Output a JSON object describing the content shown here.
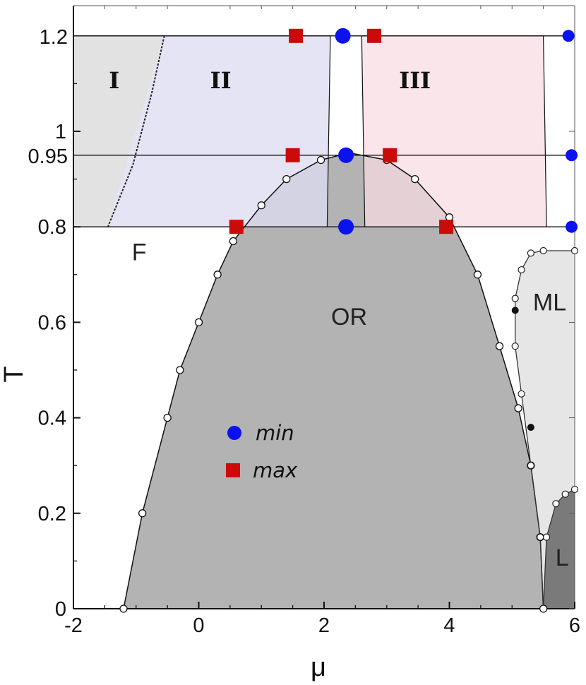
{
  "chart_data": {
    "type": "scatter",
    "xlabel": "μ",
    "ylabel": "T",
    "xlim": [
      -2,
      6
    ],
    "ylim": [
      0,
      1.2
    ],
    "x_ticks": [
      -2,
      0,
      2,
      4,
      6
    ],
    "x_tick_labels": [
      "-2",
      "0",
      "2",
      "4",
      "6"
    ],
    "y_ticks": [
      0,
      0.2,
      0.4,
      0.6,
      0.8,
      1.0
    ],
    "y_tick_labels": [
      "0",
      "0.2",
      "0.4",
      "0.6",
      "0.8",
      "1"
    ],
    "extra_y_labels": [
      {
        "y": 0.95,
        "label": "0.95"
      },
      {
        "y": 1.2,
        "label": "1.2"
      }
    ],
    "grid": false,
    "legend_position": "center-left",
    "colors": {
      "min": "#0a12ee",
      "max": "#cc0a0a",
      "region_I": "#e2e2e2",
      "region_II": "#dcdcf2",
      "region_III": "#f6dbe2",
      "OR": "#b3b3b3",
      "ML": "#e6e6e6",
      "L": "#7a7a7a"
    },
    "regions": [
      {
        "label": "I"
      },
      {
        "label": "II"
      },
      {
        "label": "III"
      },
      {
        "label": "F"
      },
      {
        "label": "OR"
      },
      {
        "label": "ML"
      },
      {
        "label": "L"
      }
    ],
    "series": [
      {
        "name": "min",
        "marker": "circle",
        "color": "#0a12ee",
        "points": [
          {
            "x": 2.3,
            "y": 1.2
          },
          {
            "x": 5.9,
            "y": 1.2
          },
          {
            "x": 2.35,
            "y": 0.95
          },
          {
            "x": 5.95,
            "y": 0.95
          },
          {
            "x": 2.35,
            "y": 0.8
          },
          {
            "x": 5.95,
            "y": 0.8
          }
        ]
      },
      {
        "name": "max",
        "marker": "square",
        "color": "#cc0a0a",
        "points": [
          {
            "x": 1.55,
            "y": 1.2
          },
          {
            "x": 2.8,
            "y": 1.2
          },
          {
            "x": 1.5,
            "y": 0.95
          },
          {
            "x": 3.05,
            "y": 0.95
          },
          {
            "x": 0.6,
            "y": 0.8
          },
          {
            "x": 3.95,
            "y": 0.8
          }
        ]
      }
    ],
    "boundaries": {
      "OR": [
        [
          -1.2,
          0
        ],
        [
          -0.9,
          0.2
        ],
        [
          -0.5,
          0.4
        ],
        [
          -0.3,
          0.5
        ],
        [
          0,
          0.6
        ],
        [
          0.3,
          0.7
        ],
        [
          0.55,
          0.77
        ],
        [
          1.0,
          0.845
        ],
        [
          1.4,
          0.9
        ],
        [
          1.95,
          0.94
        ],
        [
          2.4,
          0.955
        ],
        [
          3.0,
          0.94
        ],
        [
          3.45,
          0.9
        ],
        [
          4.0,
          0.82
        ],
        [
          4.45,
          0.7
        ],
        [
          4.8,
          0.55
        ],
        [
          5.1,
          0.42
        ],
        [
          5.3,
          0.3
        ],
        [
          5.45,
          0.15
        ],
        [
          5.5,
          0.0
        ]
      ],
      "ML_outer": [
        [
          5.5,
          0.0
        ],
        [
          5.45,
          0.15
        ],
        [
          5.3,
          0.3
        ],
        [
          5.15,
          0.45
        ],
        [
          5.05,
          0.55
        ],
        [
          5.05,
          0.65
        ],
        [
          5.15,
          0.71
        ],
        [
          5.3,
          0.745
        ],
        [
          5.5,
          0.75
        ],
        [
          6.0,
          0.75
        ]
      ],
      "L": [
        [
          5.5,
          0.0
        ],
        [
          5.55,
          0.15
        ],
        [
          5.7,
          0.22
        ],
        [
          5.85,
          0.24
        ],
        [
          6.0,
          0.25
        ]
      ]
    }
  },
  "legend": {
    "min_label": "min",
    "max_label": "max"
  }
}
